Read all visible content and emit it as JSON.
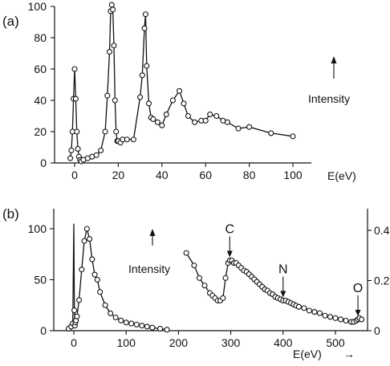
{
  "chart_data": [
    {
      "type": "line",
      "panel_label": "(a)",
      "xlabel": "E(eV)",
      "ylabel": "",
      "annotation": "Intensity",
      "xlim": [
        -5,
        105
      ],
      "ylim": [
        0,
        100
      ],
      "x_ticks": [
        0,
        20,
        40,
        60,
        80,
        100
      ],
      "y_ticks": [
        0,
        20,
        40,
        60,
        80,
        100
      ],
      "grid": false,
      "series": [
        {
          "x": [
            -2,
            -1.5,
            -1,
            -0.5,
            0,
            0.5,
            1,
            1.5,
            2,
            2.5,
            3,
            4,
            6,
            8,
            10,
            12,
            14,
            15,
            16,
            16.5,
            17,
            17.5,
            18,
            18.5,
            19,
            19.5,
            20,
            21,
            22,
            24,
            27,
            30,
            31,
            32,
            32.5,
            33,
            34,
            35,
            36,
            38,
            40,
            42,
            45,
            48,
            50,
            52,
            55,
            58,
            60,
            62,
            65,
            68,
            70,
            75,
            80,
            90,
            100
          ],
          "y": [
            3,
            8,
            20,
            41,
            60,
            41,
            20,
            9,
            4,
            2,
            1,
            2,
            3,
            4,
            5,
            8,
            20,
            43,
            71,
            97,
            101,
            98,
            75,
            40,
            20,
            14,
            14,
            13,
            15,
            15,
            15,
            42,
            56,
            86,
            95,
            62,
            38,
            29,
            28,
            26,
            24,
            31,
            40,
            46,
            38,
            30,
            26,
            27,
            27,
            31,
            30,
            27,
            26,
            22,
            23,
            19,
            17
          ]
        }
      ]
    },
    {
      "type": "line",
      "panel_label": "(b)",
      "xlabel": "E(eV)",
      "xlabel_arrow": "→",
      "annotation": "Intensity",
      "xlim": [
        -15,
        560
      ],
      "ylim_left": [
        0,
        110
      ],
      "ylim_right": [
        0,
        0.44
      ],
      "x_ticks": [
        0,
        100,
        200,
        300,
        400,
        500
      ],
      "y_ticks_left": [
        0,
        50,
        100
      ],
      "y_ticks_right": [
        0,
        0.2,
        0.4
      ],
      "grid": false,
      "markers": [
        {
          "label": "C",
          "x": 298
        },
        {
          "label": "N",
          "x": 400
        },
        {
          "label": "O",
          "x": 543
        }
      ],
      "series": [
        {
          "axis": "left",
          "x": [
            -10,
            -5,
            -2,
            0,
            1,
            2,
            3,
            4,
            6,
            10,
            15,
            20,
            25,
            30,
            35,
            40,
            45,
            50,
            60,
            70,
            80,
            90,
            100,
            110,
            120,
            130,
            140,
            150,
            165,
            178
          ],
          "y": [
            2,
            4,
            7,
            105,
            20,
            5,
            8,
            10,
            14,
            30,
            60,
            88,
            100,
            90,
            70,
            55,
            50,
            38,
            25,
            17,
            13,
            10,
            8,
            7,
            6,
            5,
            4,
            3,
            2,
            1
          ]
        },
        {
          "axis": "right",
          "x": [
            215,
            230,
            240,
            250,
            260,
            265,
            270,
            275,
            280,
            285,
            290,
            295,
            298,
            302,
            306,
            310,
            315,
            320,
            325,
            330,
            335,
            340,
            345,
            350,
            355,
            360,
            365,
            370,
            375,
            380,
            385,
            390,
            395,
            400,
            405,
            410,
            415,
            420,
            425,
            430,
            440,
            450,
            460,
            470,
            480,
            490,
            500,
            510,
            520,
            530,
            535,
            540,
            543,
            546,
            550
          ],
          "y": [
            0.31,
            0.26,
            0.21,
            0.18,
            0.15,
            0.14,
            0.13,
            0.12,
            0.12,
            0.13,
            0.21,
            0.27,
            0.28,
            0.28,
            0.27,
            0.27,
            0.26,
            0.25,
            0.24,
            0.235,
            0.225,
            0.215,
            0.205,
            0.195,
            0.185,
            0.175,
            0.165,
            0.16,
            0.15,
            0.145,
            0.135,
            0.13,
            0.125,
            0.12,
            0.12,
            0.115,
            0.11,
            0.105,
            0.1,
            0.095,
            0.09,
            0.08,
            0.075,
            0.07,
            0.06,
            0.055,
            0.05,
            0.045,
            0.04,
            0.035,
            0.035,
            0.04,
            0.045,
            0.05,
            0.045
          ]
        }
      ]
    }
  ]
}
